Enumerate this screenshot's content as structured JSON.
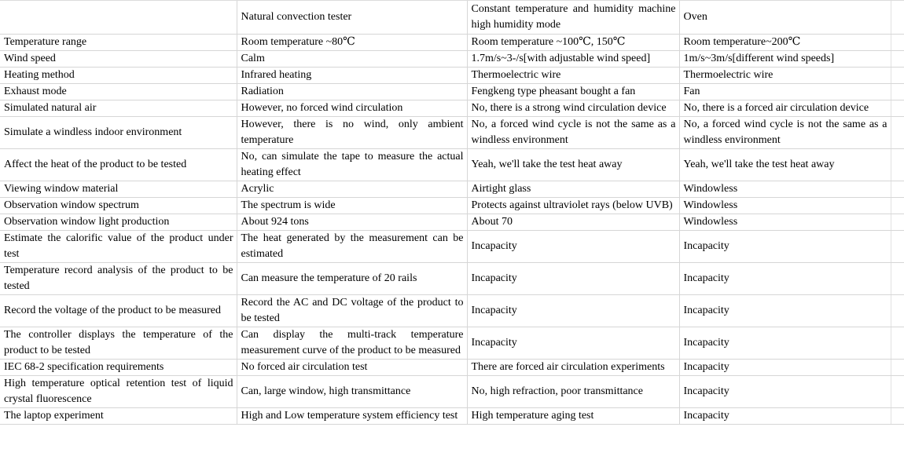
{
  "table": {
    "header": [
      "",
      "Natural convection tester",
      "Constant temperature and humidity machine high humidity mode",
      "Oven"
    ],
    "rows": [
      [
        "Temperature range",
        "Room temperature ~80℃",
        "Room temperature ~100℃, 150℃",
        "Room temperature~200℃"
      ],
      [
        "Wind speed",
        "Calm",
        "1.7m/s~3-/s[with adjustable wind speed]",
        "1m/s~3m/s[different wind speeds]"
      ],
      [
        "Heating method",
        "Infrared heating",
        "Thermoelectric wire",
        "Thermoelectric wire"
      ],
      [
        "Exhaust mode",
        "Radiation",
        "Fengkeng type pheasant bought a fan",
        "Fan"
      ],
      [
        "Simulated natural air",
        "However, no forced wind circulation",
        "No, there is a strong wind circulation device",
        "No, there is a forced air circulation device"
      ],
      [
        "Simulate a windless indoor environment",
        "However, there is no wind, only ambient temperature",
        "No, a forced wind cycle is not the same as a windless environment",
        "No, a forced wind cycle is not the same as a windless environment"
      ],
      [
        "Affect the heat of the product to be tested",
        "No, can simulate the tape to measure the actual heating effect",
        "Yeah, we'll take the test heat away",
        "Yeah, we'll take the test heat away"
      ],
      [
        "Viewing window material",
        "Acrylic",
        "Airtight glass",
        "Windowless"
      ],
      [
        "Observation window spectrum",
        "The spectrum is wide",
        "Protects against ultraviolet rays (below UVB)",
        "Windowless"
      ],
      [
        "Observation window light production",
        "About 924 tons",
        "About 70",
        "Windowless"
      ],
      [
        "Estimate the calorific value of the product under test",
        "The heat generated by the measurement can be estimated",
        "Incapacity",
        "Incapacity"
      ],
      [
        "Temperature record analysis of the product to be tested",
        "Can measure the temperature of 20 rails",
        "Incapacity",
        "Incapacity"
      ],
      [
        "Record the voltage of the product to be measured",
        "Record the AC and DC voltage of the product to be tested",
        "Incapacity",
        "Incapacity"
      ],
      [
        "The controller displays the temperature of the product to be tested",
        "Can display the multi-track temperature measurement curve of the product to be measured",
        "Incapacity",
        "Incapacity"
      ],
      [
        "IEC 68-2 specification requirements",
        "No forced air circulation test",
        "There are forced air circulation experiments",
        "Incapacity"
      ],
      [
        "High temperature optical retention test of liquid crystal fluorescence",
        "Can, large window, high transmittance",
        "No, high refraction, poor transmittance",
        "Incapacity"
      ],
      [
        "The laptop experiment",
        "High and Low temperature system efficiency test",
        "High temperature aging test",
        "Incapacity"
      ]
    ],
    "colors": {
      "gridline": "#d6d6d6",
      "text": "#000000",
      "background": "#ffffff"
    }
  }
}
